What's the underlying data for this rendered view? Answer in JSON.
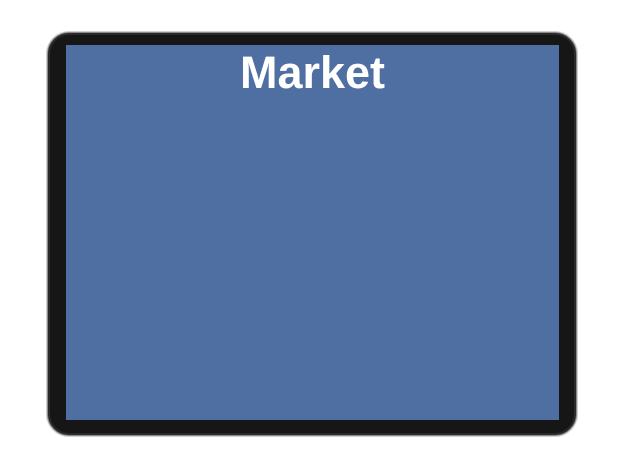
{
  "screen": {
    "title": "Market",
    "background_color": "#4f6ea2",
    "title_color": "#ffffff"
  },
  "device": {
    "bezel_color": "#161616"
  }
}
